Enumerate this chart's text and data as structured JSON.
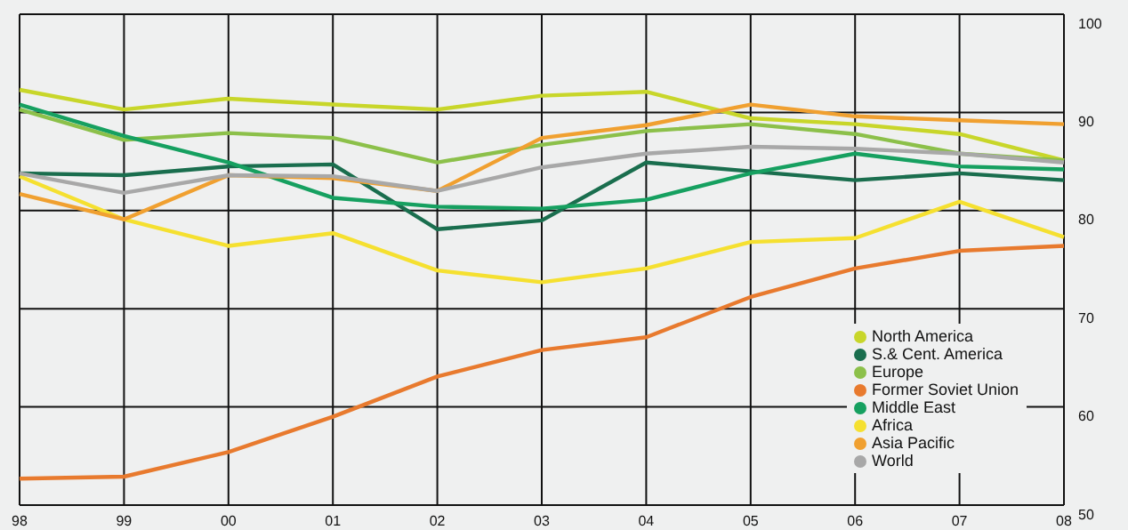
{
  "chart_data": {
    "type": "line",
    "categories": [
      "98",
      "99",
      "00",
      "01",
      "02",
      "03",
      "04",
      "05",
      "06",
      "07",
      "08"
    ],
    "ylim": [
      50,
      100
    ],
    "yticks": [
      50,
      60,
      70,
      80,
      90,
      100
    ],
    "grid": true,
    "legend": "bottom right",
    "marker": "none",
    "line_style": "solid",
    "series": [
      {
        "name": "North America",
        "color": "#c8d62a",
        "values": [
          92.3,
          90.3,
          91.4,
          90.8,
          90.3,
          91.7,
          92.1,
          89.4,
          88.8,
          87.8,
          85.1
        ]
      },
      {
        "name": "S.& Cent. America",
        "color": "#1a6e4e",
        "values": [
          83.8,
          83.6,
          84.5,
          84.7,
          78.1,
          79.0,
          84.9,
          84.0,
          83.1,
          83.8,
          83.1
        ]
      },
      {
        "name": "Europe",
        "color": "#8cc04a",
        "values": [
          90.3,
          87.2,
          87.9,
          87.4,
          84.9,
          86.7,
          88.1,
          88.8,
          87.8,
          85.8,
          85.1
        ]
      },
      {
        "name": "Former Soviet Union",
        "color": "#e87a2e",
        "values": [
          52.7,
          52.9,
          55.4,
          59.0,
          63.1,
          65.8,
          67.1,
          71.2,
          74.1,
          75.9,
          76.4
        ]
      },
      {
        "name": "Middle East",
        "color": "#16a060",
        "values": [
          90.8,
          87.6,
          84.9,
          81.3,
          80.4,
          80.2,
          81.1,
          83.8,
          85.8,
          84.5,
          84.2
        ]
      },
      {
        "name": "Africa",
        "color": "#f5e030",
        "values": [
          83.5,
          79.1,
          76.4,
          77.7,
          73.9,
          72.7,
          74.1,
          76.8,
          77.2,
          80.9,
          77.3
        ]
      },
      {
        "name": "Asia Pacific",
        "color": "#f0a030",
        "values": [
          81.7,
          79.1,
          83.6,
          83.3,
          82.0,
          87.4,
          88.7,
          90.8,
          89.6,
          89.2,
          88.8
        ]
      },
      {
        "name": "World",
        "color": "#a8a8a8",
        "values": [
          83.8,
          81.8,
          83.6,
          83.5,
          82.0,
          84.4,
          85.8,
          86.5,
          86.3,
          85.8,
          84.9
        ]
      }
    ]
  }
}
